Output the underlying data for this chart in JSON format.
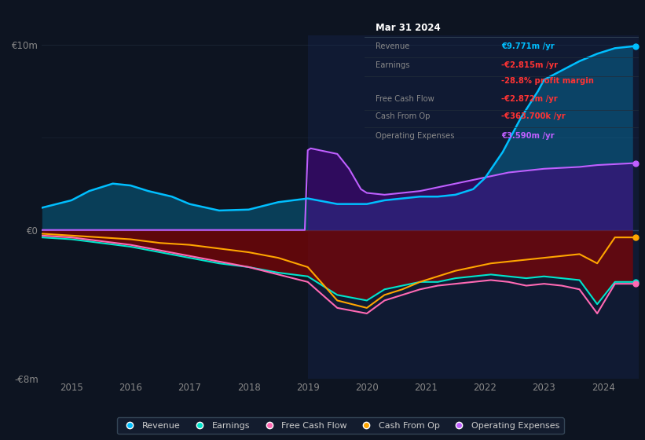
{
  "bg_color": "#0d1421",
  "plot_bg_color": "#0d1421",
  "ylim": [
    -8,
    10.5
  ],
  "xlim": [
    2014.5,
    2024.6
  ],
  "xticks": [
    2015,
    2016,
    2017,
    2018,
    2019,
    2020,
    2021,
    2022,
    2023,
    2024
  ],
  "colors": {
    "revenue": "#00bfff",
    "earnings": "#00e5cc",
    "free_cash_flow": "#ff69b4",
    "cash_from_op": "#ffa500",
    "operating_expenses": "#bf5fff"
  },
  "info_box": {
    "title": "Mar 31 2024",
    "rows": [
      {
        "label": "Revenue",
        "value": "€9.771m /yr",
        "label_color": "#888888",
        "value_color": "#00bfff"
      },
      {
        "label": "Earnings",
        "value": "-€2.815m /yr",
        "label_color": "#888888",
        "value_color": "#ff3333"
      },
      {
        "label": "",
        "value": "-28.8% profit margin",
        "label_color": "#888888",
        "value_color": "#ff3333"
      },
      {
        "label": "Free Cash Flow",
        "value": "-€2.872m /yr",
        "label_color": "#888888",
        "value_color": "#ff3333"
      },
      {
        "label": "Cash From Op",
        "value": "-€363.700k /yr",
        "label_color": "#888888",
        "value_color": "#ff3333"
      },
      {
        "label": "Operating Expenses",
        "value": "€3.590m /yr",
        "label_color": "#888888",
        "value_color": "#bf5fff"
      }
    ]
  },
  "revenue_x": [
    2014.5,
    2015.0,
    2015.3,
    2015.7,
    2016.0,
    2016.3,
    2016.7,
    2017.0,
    2017.5,
    2018.0,
    2018.5,
    2019.0,
    2019.5,
    2020.0,
    2020.3,
    2020.6,
    2020.9,
    2021.2,
    2021.5,
    2021.8,
    2022.0,
    2022.3,
    2022.6,
    2022.9,
    2023.0,
    2023.3,
    2023.6,
    2023.9,
    2024.2,
    2024.5
  ],
  "revenue_y": [
    1.2,
    1.6,
    2.1,
    2.5,
    2.4,
    2.1,
    1.8,
    1.4,
    1.05,
    1.1,
    1.5,
    1.7,
    1.4,
    1.4,
    1.6,
    1.7,
    1.8,
    1.8,
    1.9,
    2.2,
    2.8,
    4.2,
    6.0,
    7.5,
    8.1,
    8.6,
    9.1,
    9.5,
    9.8,
    9.9
  ],
  "earnings_x": [
    2014.5,
    2015.0,
    2015.5,
    2016.0,
    2016.5,
    2017.0,
    2017.5,
    2018.0,
    2018.5,
    2019.0,
    2019.5,
    2020.0,
    2020.3,
    2020.6,
    2020.9,
    2021.2,
    2021.5,
    2021.8,
    2022.1,
    2022.4,
    2022.7,
    2023.0,
    2023.3,
    2023.6,
    2023.9,
    2024.2,
    2024.5
  ],
  "earnings_y": [
    -0.4,
    -0.5,
    -0.7,
    -0.9,
    -1.2,
    -1.5,
    -1.8,
    -2.0,
    -2.3,
    -2.5,
    -3.5,
    -3.8,
    -3.2,
    -3.0,
    -2.8,
    -2.8,
    -2.6,
    -2.5,
    -2.4,
    -2.5,
    -2.6,
    -2.5,
    -2.6,
    -2.7,
    -4.0,
    -2.8,
    -2.8
  ],
  "fcf_x": [
    2014.5,
    2015.0,
    2015.5,
    2016.0,
    2016.5,
    2017.0,
    2017.5,
    2018.0,
    2018.5,
    2019.0,
    2019.5,
    2020.0,
    2020.3,
    2020.6,
    2020.9,
    2021.2,
    2021.5,
    2021.8,
    2022.1,
    2022.4,
    2022.7,
    2023.0,
    2023.3,
    2023.6,
    2023.9,
    2024.2,
    2024.5
  ],
  "fcf_y": [
    -0.3,
    -0.4,
    -0.6,
    -0.8,
    -1.1,
    -1.4,
    -1.7,
    -2.0,
    -2.4,
    -2.8,
    -4.2,
    -4.5,
    -3.8,
    -3.5,
    -3.2,
    -3.0,
    -2.9,
    -2.8,
    -2.7,
    -2.8,
    -3.0,
    -2.9,
    -3.0,
    -3.2,
    -4.5,
    -2.9,
    -2.9
  ],
  "cfo_x": [
    2014.5,
    2015.0,
    2015.5,
    2016.0,
    2016.5,
    2017.0,
    2017.5,
    2018.0,
    2018.5,
    2019.0,
    2019.5,
    2020.0,
    2020.3,
    2020.6,
    2020.9,
    2021.2,
    2021.5,
    2021.8,
    2022.1,
    2022.4,
    2022.7,
    2023.0,
    2023.3,
    2023.6,
    2023.9,
    2024.2,
    2024.5
  ],
  "cfo_y": [
    -0.2,
    -0.3,
    -0.4,
    -0.5,
    -0.7,
    -0.8,
    -1.0,
    -1.2,
    -1.5,
    -2.0,
    -3.8,
    -4.2,
    -3.5,
    -3.2,
    -2.8,
    -2.5,
    -2.2,
    -2.0,
    -1.8,
    -1.7,
    -1.6,
    -1.5,
    -1.4,
    -1.3,
    -1.8,
    -0.4,
    -0.4
  ],
  "opex_x": [
    2014.5,
    2018.95,
    2019.0,
    2019.05,
    2019.2,
    2019.5,
    2019.7,
    2019.9,
    2020.0,
    2020.3,
    2020.6,
    2020.9,
    2021.2,
    2021.5,
    2021.8,
    2022.1,
    2022.4,
    2022.7,
    2023.0,
    2023.3,
    2023.6,
    2023.9,
    2024.2,
    2024.5
  ],
  "opex_y": [
    0.0,
    0.0,
    4.3,
    4.4,
    4.3,
    4.1,
    3.3,
    2.2,
    2.0,
    1.9,
    2.0,
    2.1,
    2.3,
    2.5,
    2.7,
    2.9,
    3.1,
    3.2,
    3.3,
    3.35,
    3.4,
    3.5,
    3.55,
    3.6
  ]
}
